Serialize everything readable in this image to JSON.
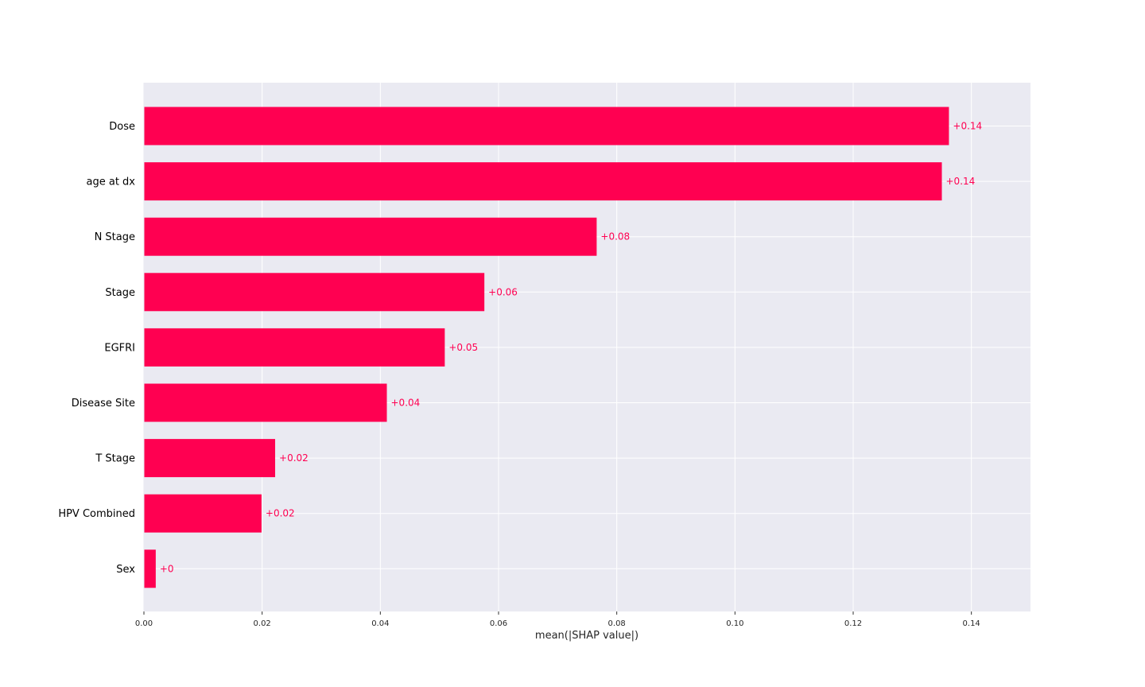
{
  "chart_data": {
    "type": "bar",
    "orientation": "horizontal",
    "categories": [
      "Dose",
      "age at dx",
      "N Stage",
      "Stage",
      "EGFRI",
      "Disease Site",
      "T Stage",
      "HPV Combined",
      "Sex"
    ],
    "values": [
      0.1362,
      0.135,
      0.0766,
      0.0576,
      0.0509,
      0.0411,
      0.0222,
      0.0199,
      0.002
    ],
    "data_labels": [
      "+0.14",
      "+0.14",
      "+0.08",
      "+0.06",
      "+0.05",
      "+0.04",
      "+0.02",
      "+0.02",
      "+0"
    ],
    "xlabel": "mean(|SHAP value|)",
    "ylabel": "",
    "title": "",
    "xlim": [
      0,
      0.15
    ],
    "xticks": [
      "0.00",
      "0.02",
      "0.04",
      "0.06",
      "0.08",
      "0.10",
      "0.12",
      "0.14"
    ],
    "xtick_values": [
      0,
      0.02,
      0.04,
      0.06,
      0.08,
      0.1,
      0.12,
      0.14
    ],
    "grid": true,
    "colors": {
      "bar": "#ff0051",
      "background": "#eaeaf2",
      "grid": "#ffffff"
    }
  }
}
